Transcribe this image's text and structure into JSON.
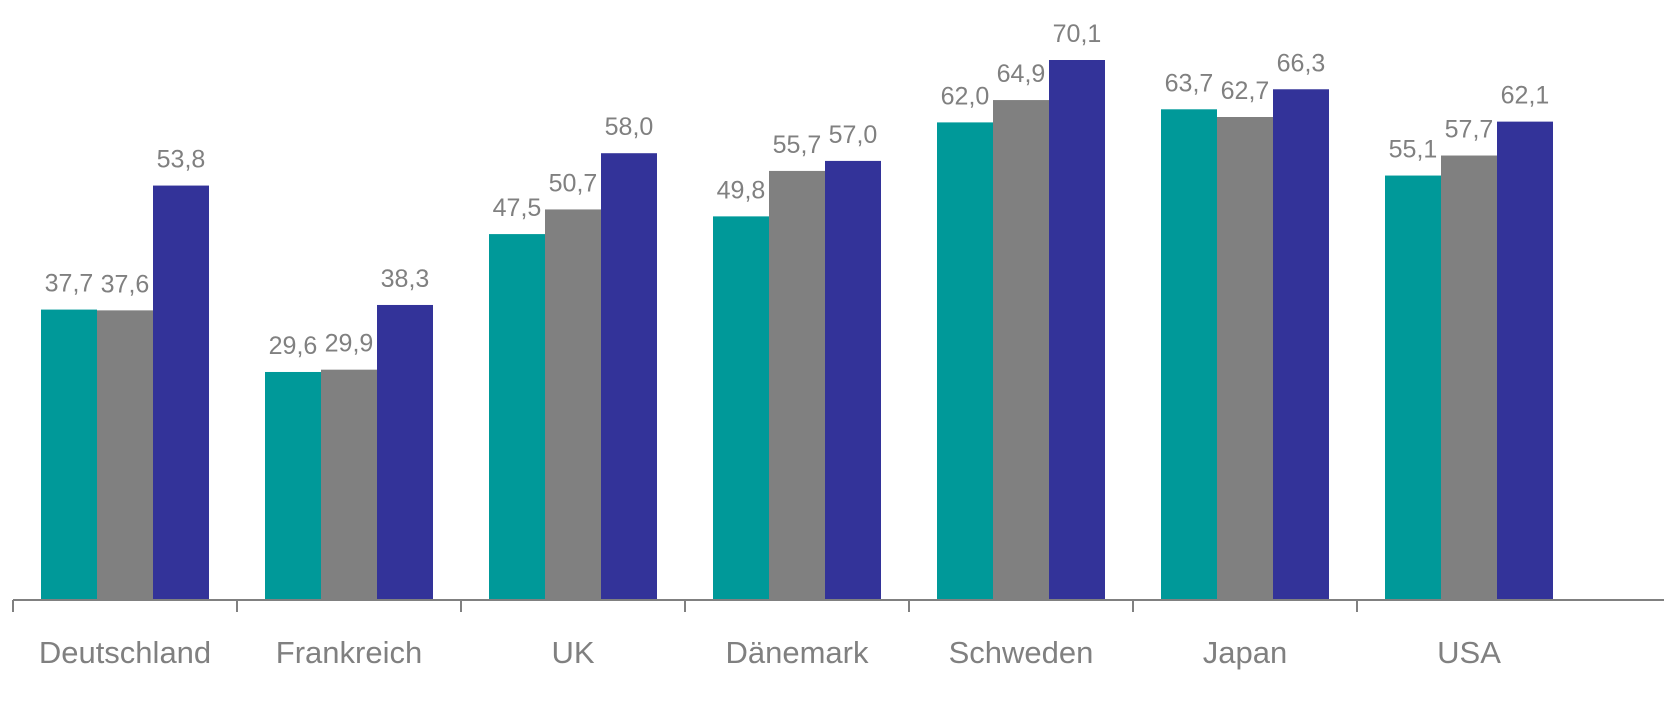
{
  "chart_data": {
    "type": "bar",
    "categories": [
      "Deutschland",
      "Frankreich",
      "UK",
      "Dänemark",
      "Schweden",
      "Japan",
      "USA"
    ],
    "series": [
      {
        "values": [
          37.7,
          29.6,
          47.5,
          49.8,
          62.0,
          63.7,
          55.1
        ]
      },
      {
        "values": [
          37.6,
          29.9,
          50.7,
          55.7,
          64.9,
          62.7,
          57.7
        ]
      },
      {
        "values": [
          53.8,
          38.3,
          58.0,
          57.0,
          70.1,
          66.3,
          62.1
        ]
      }
    ],
    "data_labels": [
      [
        "37,7",
        "29,6",
        "47,5",
        "49,8",
        "62,0",
        "63,7",
        "55,1"
      ],
      [
        "37,6",
        "29,9",
        "50,7",
        "55,7",
        "64,9",
        "62,7",
        "57,7"
      ],
      [
        "53,8",
        "38,3",
        "58,0",
        "57,0",
        "70,1",
        "66,3",
        "62,1"
      ]
    ],
    "series_colors": [
      "#009999",
      "#808080",
      "#333399"
    ],
    "ylim": [
      0,
      70.1
    ],
    "grid": false,
    "legend": "none",
    "title": "",
    "xlabel": "",
    "ylabel": ""
  }
}
